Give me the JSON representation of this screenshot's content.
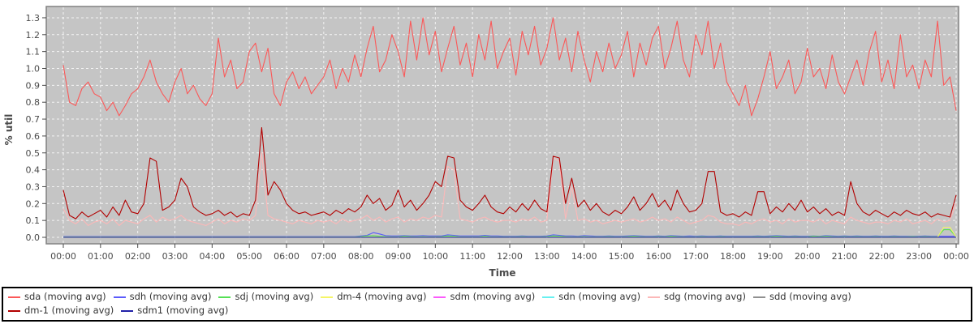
{
  "chart_data": {
    "type": "line",
    "title": "",
    "xlabel": "Time",
    "ylabel": "% util",
    "grid": true,
    "legend_position": "bottom",
    "plot_bg_color": "#c5c5c5",
    "grid_color": "#ffffff",
    "axis_text_color": "#4a4a4a",
    "ylim": [
      0.0,
      1.3
    ],
    "y_tick_step": 0.1,
    "y_tick_labels": [
      "0.0",
      "0.1",
      "0.2",
      "0.3",
      "0.4",
      "0.5",
      "0.6",
      "0.7",
      "0.8",
      "0.9",
      "1.0",
      "1.1",
      "1.2",
      "1.3"
    ],
    "x_tick_labels": [
      "00:00",
      "01:00",
      "02:00",
      "03:00",
      "04:00",
      "05:00",
      "06:00",
      "07:00",
      "08:00",
      "09:00",
      "10:00",
      "11:00",
      "12:00",
      "13:00",
      "14:00",
      "15:00",
      "16:00",
      "17:00",
      "18:00",
      "19:00",
      "20:00",
      "21:00",
      "22:00",
      "23:00",
      "00:00"
    ],
    "x_span_hours": 24,
    "sample_interval_minutes": 10,
    "series": [
      {
        "name": "sda (moving avg)",
        "id": "sda",
        "color": "#fb5858",
        "values": [
          1.02,
          0.8,
          0.78,
          0.88,
          0.92,
          0.85,
          0.83,
          0.75,
          0.8,
          0.72,
          0.78,
          0.85,
          0.88,
          0.95,
          1.05,
          0.92,
          0.85,
          0.8,
          0.92,
          1.0,
          0.85,
          0.9,
          0.82,
          0.78,
          0.85,
          1.18,
          0.95,
          1.05,
          0.88,
          0.92,
          1.1,
          1.15,
          0.98,
          1.12,
          0.85,
          0.78,
          0.92,
          0.98,
          0.88,
          0.95,
          0.85,
          0.9,
          0.95,
          1.05,
          0.88,
          1.0,
          0.92,
          1.08,
          0.95,
          1.12,
          1.25,
          0.98,
          1.05,
          1.2,
          1.1,
          0.95,
          1.28,
          1.05,
          1.3,
          1.08,
          1.22,
          0.98,
          1.12,
          1.25,
          1.02,
          1.15,
          0.95,
          1.2,
          1.05,
          1.28,
          1.0,
          1.1,
          1.18,
          0.96,
          1.22,
          1.08,
          1.25,
          1.02,
          1.12,
          1.3,
          1.05,
          1.18,
          0.98,
          1.22,
          1.05,
          0.92,
          1.1,
          0.98,
          1.15,
          1.0,
          1.08,
          1.22,
          0.95,
          1.15,
          1.02,
          1.18,
          1.25,
          1.0,
          1.12,
          1.28,
          1.05,
          0.95,
          1.2,
          1.08,
          1.28,
          1.0,
          1.15,
          0.92,
          0.85,
          0.78,
          0.9,
          0.72,
          0.82,
          0.95,
          1.1,
          0.88,
          0.95,
          1.05,
          0.85,
          0.92,
          1.12,
          0.95,
          1.0,
          0.88,
          1.08,
          0.92,
          0.85,
          0.95,
          1.05,
          0.9,
          1.1,
          1.22,
          0.92,
          1.05,
          0.88,
          1.2,
          0.95,
          1.02,
          0.88,
          1.05,
          0.95,
          1.28,
          0.9,
          0.95,
          0.75
        ]
      },
      {
        "name": "sdh (moving avg)",
        "id": "sdh",
        "color": "#5b5bfb",
        "values": [
          0.005,
          0.005,
          0.005,
          0.005,
          0.005,
          0.005,
          0.005,
          0.005,
          0.005,
          0.005,
          0.005,
          0.005,
          0.005,
          0.005,
          0.005,
          0.005,
          0.005,
          0.005,
          0.005,
          0.005,
          0.005,
          0.005,
          0.005,
          0.005,
          0.005,
          0.005,
          0.005,
          0.005,
          0.005,
          0.005,
          0.005,
          0.005,
          0.005,
          0.005,
          0.005,
          0.005,
          0.005,
          0.005,
          0.005,
          0.005,
          0.005,
          0.005,
          0.005,
          0.005,
          0.005,
          0.005,
          0.005,
          0.005,
          0.008,
          0.012,
          0.028,
          0.02,
          0.01,
          0.008,
          0.008,
          0.01,
          0.008,
          0.008,
          0.01,
          0.008,
          0.008,
          0.008,
          0.015,
          0.012,
          0.008,
          0.008,
          0.008,
          0.008,
          0.012,
          0.008,
          0.008,
          0.006,
          0.006,
          0.006,
          0.008,
          0.006,
          0.006,
          0.006,
          0.008,
          0.015,
          0.012,
          0.008,
          0.008,
          0.006,
          0.01,
          0.008,
          0.006,
          0.006,
          0.008,
          0.006,
          0.006,
          0.008,
          0.01,
          0.008,
          0.006,
          0.006,
          0.008,
          0.006,
          0.01,
          0.008,
          0.006,
          0.008,
          0.006,
          0.008,
          0.006,
          0.006,
          0.008,
          0.006,
          0.006,
          0.006,
          0.006,
          0.006,
          0.008,
          0.006,
          0.008,
          0.01,
          0.008,
          0.006,
          0.008,
          0.006,
          0.006,
          0.008,
          0.006,
          0.01,
          0.008,
          0.006,
          0.008,
          0.006,
          0.008,
          0.006,
          0.006,
          0.008,
          0.006,
          0.006,
          0.008,
          0.006,
          0.006,
          0.006,
          0.006,
          0.008,
          0.006,
          0.006,
          0.006,
          0.006,
          0.006
        ]
      },
      {
        "name": "sdj (moving avg)",
        "id": "sdj",
        "color": "#55e055",
        "values": [
          0.002,
          0.002,
          0.002,
          0.002,
          0.002,
          0.002,
          0.002,
          0.002,
          0.002,
          0.002,
          0.002,
          0.002,
          0.002,
          0.002,
          0.002,
          0.002,
          0.002,
          0.002,
          0.002,
          0.002,
          0.002,
          0.002,
          0.002,
          0.002,
          0.002,
          0.002,
          0.002,
          0.002,
          0.002,
          0.002,
          0.002,
          0.002,
          0.002,
          0.002,
          0.002,
          0.002,
          0.002,
          0.002,
          0.002,
          0.002,
          0.002,
          0.002,
          0.002,
          0.002,
          0.002,
          0.002,
          0.002,
          0.002,
          0.004,
          0.008,
          0.01,
          0.006,
          0.004,
          0.003,
          0.003,
          0.006,
          0.004,
          0.003,
          0.004,
          0.003,
          0.003,
          0.004,
          0.008,
          0.006,
          0.003,
          0.003,
          0.003,
          0.003,
          0.006,
          0.003,
          0.003,
          0.003,
          0.003,
          0.003,
          0.004,
          0.003,
          0.003,
          0.003,
          0.004,
          0.008,
          0.006,
          0.004,
          0.003,
          0.003,
          0.004,
          0.003,
          0.003,
          0.003,
          0.004,
          0.003,
          0.003,
          0.004,
          0.006,
          0.004,
          0.003,
          0.003,
          0.004,
          0.003,
          0.006,
          0.004,
          0.003,
          0.003,
          0.003,
          0.004,
          0.003,
          0.003,
          0.004,
          0.003,
          0.003,
          0.003,
          0.003,
          0.003,
          0.004,
          0.003,
          0.004,
          0.006,
          0.004,
          0.003,
          0.004,
          0.003,
          0.003,
          0.006,
          0.004,
          0.006,
          0.004,
          0.003,
          0.004,
          0.003,
          0.004,
          0.003,
          0.003,
          0.004,
          0.003,
          0.003,
          0.004,
          0.003,
          0.003,
          0.004,
          0.003,
          0.004,
          0.003,
          0.003,
          0.045,
          0.045,
          0.003
        ]
      },
      {
        "name": "dm-4 (moving avg)",
        "id": "dm-4",
        "color": "#f5f567",
        "base": 0.001,
        "length": 145,
        "overrides": {
          "142": 0.06,
          "143": 0.06
        }
      },
      {
        "name": "sdm (moving avg)",
        "id": "sdm",
        "color": "#fb5bfb",
        "base": 0.0,
        "length": 145,
        "overrides": {}
      },
      {
        "name": "sdn (moving avg)",
        "id": "sdn",
        "color": "#67f0f0",
        "base": 0.0,
        "length": 145,
        "overrides": {}
      },
      {
        "name": "sdg (moving avg)",
        "id": "sdg",
        "color": "#fcb8b8",
        "values": [
          0.17,
          0.1,
          0.08,
          0.11,
          0.07,
          0.09,
          0.1,
          0.08,
          0.11,
          0.07,
          0.1,
          0.09,
          0.08,
          0.11,
          0.13,
          0.09,
          0.12,
          0.1,
          0.11,
          0.13,
          0.1,
          0.09,
          0.08,
          0.07,
          0.09,
          0.11,
          0.08,
          0.1,
          0.09,
          0.11,
          0.1,
          0.13,
          0.5,
          0.13,
          0.11,
          0.1,
          0.09,
          0.08,
          0.1,
          0.09,
          0.08,
          0.1,
          0.09,
          0.1,
          0.08,
          0.11,
          0.09,
          0.1,
          0.11,
          0.13,
          0.1,
          0.12,
          0.09,
          0.11,
          0.12,
          0.09,
          0.11,
          0.1,
          0.12,
          0.11,
          0.13,
          0.12,
          0.42,
          0.4,
          0.11,
          0.1,
          0.09,
          0.11,
          0.12,
          0.1,
          0.09,
          0.1,
          0.1,
          0.09,
          0.11,
          0.1,
          0.12,
          0.09,
          0.1,
          0.47,
          0.45,
          0.11,
          0.3,
          0.1,
          0.11,
          0.09,
          0.1,
          0.08,
          0.09,
          0.1,
          0.09,
          0.1,
          0.11,
          0.09,
          0.1,
          0.12,
          0.1,
          0.11,
          0.09,
          0.12,
          0.1,
          0.08,
          0.09,
          0.1,
          0.13,
          0.12,
          0.09,
          0.08,
          0.08,
          0.07,
          0.09,
          0.08,
          0.1,
          0.11,
          0.09,
          0.1,
          0.08,
          0.11,
          0.09,
          0.1,
          0.1,
          0.09,
          0.11,
          0.08,
          0.1,
          0.09,
          0.08,
          0.12,
          0.1,
          0.09,
          0.08,
          0.09,
          0.09,
          0.08,
          0.1,
          0.09,
          0.11,
          0.08,
          0.09,
          0.1,
          0.08,
          0.11,
          0.09,
          0.1,
          0.2
        ]
      },
      {
        "name": "sdd (moving avg)",
        "id": "sdd",
        "color": "#909090",
        "base": 0.0,
        "length": 145,
        "overrides": {}
      },
      {
        "name": "dm-1 (moving avg)",
        "id": "dm-1",
        "color": "#b20000",
        "values": [
          0.28,
          0.13,
          0.11,
          0.15,
          0.12,
          0.14,
          0.16,
          0.12,
          0.18,
          0.13,
          0.22,
          0.15,
          0.14,
          0.2,
          0.47,
          0.45,
          0.16,
          0.18,
          0.22,
          0.35,
          0.3,
          0.18,
          0.15,
          0.13,
          0.14,
          0.16,
          0.13,
          0.15,
          0.12,
          0.14,
          0.13,
          0.22,
          0.65,
          0.25,
          0.33,
          0.28,
          0.2,
          0.16,
          0.14,
          0.15,
          0.13,
          0.14,
          0.15,
          0.13,
          0.16,
          0.14,
          0.17,
          0.15,
          0.18,
          0.25,
          0.2,
          0.23,
          0.16,
          0.19,
          0.28,
          0.18,
          0.22,
          0.16,
          0.2,
          0.25,
          0.33,
          0.3,
          0.48,
          0.47,
          0.22,
          0.18,
          0.16,
          0.2,
          0.25,
          0.18,
          0.15,
          0.14,
          0.18,
          0.15,
          0.2,
          0.16,
          0.22,
          0.17,
          0.15,
          0.48,
          0.47,
          0.2,
          0.35,
          0.18,
          0.22,
          0.16,
          0.2,
          0.15,
          0.13,
          0.16,
          0.14,
          0.18,
          0.24,
          0.16,
          0.2,
          0.26,
          0.18,
          0.22,
          0.16,
          0.28,
          0.2,
          0.15,
          0.16,
          0.2,
          0.39,
          0.39,
          0.15,
          0.13,
          0.14,
          0.12,
          0.15,
          0.13,
          0.27,
          0.27,
          0.14,
          0.18,
          0.15,
          0.2,
          0.16,
          0.22,
          0.15,
          0.18,
          0.14,
          0.17,
          0.13,
          0.15,
          0.13,
          0.33,
          0.2,
          0.15,
          0.13,
          0.16,
          0.14,
          0.12,
          0.15,
          0.13,
          0.16,
          0.14,
          0.13,
          0.15,
          0.12,
          0.14,
          0.13,
          0.12,
          0.25
        ]
      },
      {
        "name": "sdm1 (moving avg)",
        "id": "sdm1",
        "color": "#2121a8",
        "base": 0.0,
        "length": 145,
        "overrides": {}
      }
    ]
  },
  "legend": {
    "items": [
      {
        "label": "sda (moving avg)",
        "color": "#fb5858"
      },
      {
        "label": "sdh (moving avg)",
        "color": "#5b5bfb"
      },
      {
        "label": "sdj (moving avg)",
        "color": "#55e055"
      },
      {
        "label": "dm-4 (moving avg)",
        "color": "#f5f567"
      },
      {
        "label": "sdm (moving avg)",
        "color": "#fb5bfb"
      },
      {
        "label": "sdn (moving avg)",
        "color": "#67f0f0"
      },
      {
        "label": "sdg (moving avg)",
        "color": "#fcb8b8"
      },
      {
        "label": "sdd (moving avg)",
        "color": "#909090"
      },
      {
        "label": "dm-1 (moving avg)",
        "color": "#b20000"
      },
      {
        "label": "sdm1 (moving avg)",
        "color": "#2121a8"
      }
    ]
  }
}
